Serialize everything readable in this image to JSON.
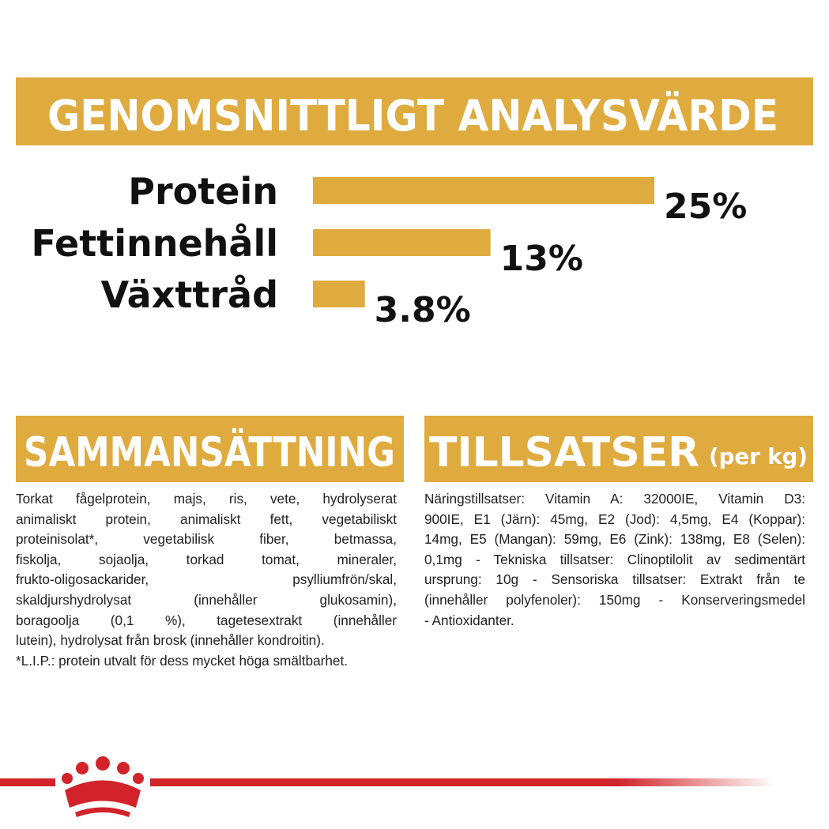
{
  "chart_data": {
    "type": "bar",
    "orientation": "horizontal",
    "title": "GENOMSNITTLIGT ANALYSVÄRDE",
    "categories": [
      "Protein",
      "Fettinnehåll",
      "Växttråd"
    ],
    "values": [
      25,
      13,
      3.8
    ],
    "value_labels": [
      "25%",
      "13%",
      "3.8%"
    ],
    "color": "#dfab3f"
  },
  "composition": {
    "title": "SAMMANSÄTTNING",
    "lines": [
      "Torkat fågelprotein, majs, ris, vete, hydrolyserat",
      "animaliskt protein, animaliskt fett, vegetabiliskt",
      "proteinisolat*, vegetabilisk fiber, betmassa,",
      "fiskolja, sojaolja, torkad tomat, mineraler,",
      "frukto-oligosackarider, psylliumfrön/skal,",
      "skaldjurshydrolysat (innehåller glukosamin),",
      "boragoolja (0,1 %), tagetesextrakt (innehåller",
      "lutein), hydrolysat från brosk (innehåller kondroitin).",
      "*L.I.P.: protein utvalt för dess mycket höga smältbarhet."
    ]
  },
  "additives": {
    "title": "TILLSATSER",
    "unit": "(per kg)",
    "lines": [
      "Näringstillsatser: Vitamin A: 32000IE, Vitamin D3:",
      "900IE, E1 (Järn): 45mg, E2 (Jod): 4,5mg, E4 (Koppar):",
      "14mg, E5 (Mangan): 59mg, E6 (Zink): 138mg, E8 (Selen):",
      "0,1mg - Tekniska tillsatser: Clinoptilolit av sedimentärt",
      "ursprung: 10g - Sensoriska tillsatser: Extrakt från te",
      "(innehåller polyfenoler): 150mg - Konserveringsmedel",
      "- Antioxidanter."
    ]
  }
}
